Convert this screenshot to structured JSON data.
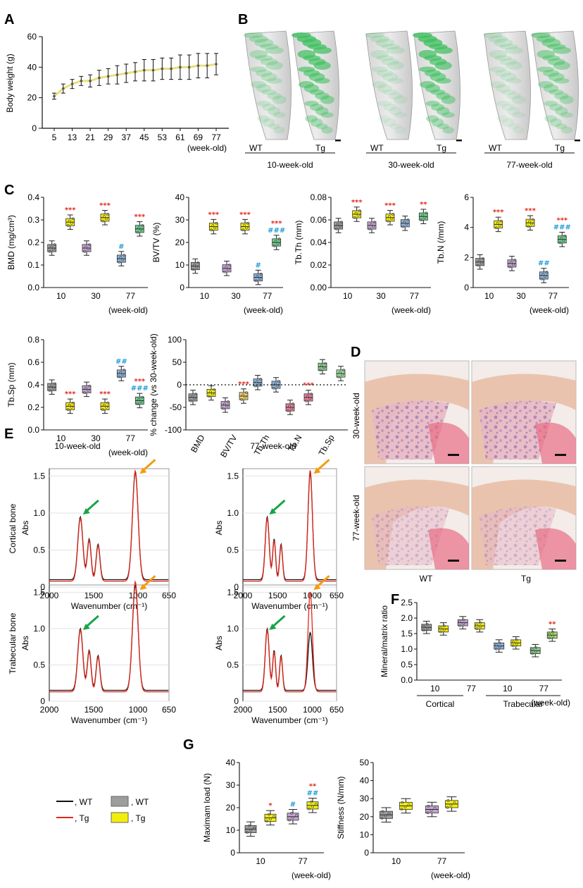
{
  "panels": {
    "A": "A",
    "B": "B",
    "C": "C",
    "D": "D",
    "E": "E",
    "F": "F",
    "G": "G"
  },
  "colors": {
    "wt_box": "#9d9d9d",
    "tg_box": "#f2ee0c",
    "wt_line": "#111111",
    "tg_line": "#e0281c",
    "blue": "#2f8fc8",
    "green_arrow": "#19a34a",
    "orange_arrow": "#f39c12",
    "red_sig": "#e0281c",
    "blue_sig": "#1e9ad6"
  },
  "panel_b": {
    "groups": [
      {
        "wt": "WT",
        "tg": "Tg",
        "age": "10-week-old"
      },
      {
        "wt": "WT",
        "tg": "Tg",
        "age": "30-week-old"
      },
      {
        "wt": "WT",
        "tg": "Tg",
        "age": "77-week-old"
      }
    ]
  },
  "panel_d": {
    "rows": [
      "30-week-old",
      "77-week-old"
    ],
    "cols": [
      "WT",
      "Tg"
    ]
  },
  "chart_data": [
    {
      "id": "A",
      "type": "line",
      "title": "",
      "ylabel": "Body weight (g)",
      "xlabel": "(week-old)",
      "ylim": [
        0,
        60
      ],
      "yticks": [
        0,
        20,
        40,
        60
      ],
      "x": [
        5,
        9,
        13,
        17,
        21,
        25,
        29,
        33,
        37,
        41,
        45,
        49,
        53,
        57,
        61,
        65,
        69,
        73,
        77
      ],
      "xtick_labels": [
        "5",
        "13",
        "21",
        "29",
        "37",
        "45",
        "53",
        "61",
        "69",
        "77"
      ],
      "series": [
        {
          "name": "Body weight",
          "values": [
            21,
            26,
            29,
            31,
            31,
            33,
            34,
            35,
            36,
            37,
            38,
            38,
            39,
            39,
            40,
            40,
            41,
            41,
            42
          ],
          "err": [
            2,
            3,
            3,
            3,
            4,
            5,
            5,
            6,
            6,
            6,
            7,
            7,
            7,
            7,
            8,
            8,
            8,
            8,
            7
          ]
        }
      ]
    },
    {
      "id": "C1",
      "type": "box",
      "ylabel": "BMD (mg/cm³)",
      "xlabel": "(week-old)",
      "ylim": [
        0,
        0.4
      ],
      "yticks": [
        "0.0",
        "0.1",
        "0.2",
        "0.3",
        "0.4"
      ],
      "categories": [
        "10",
        "30",
        "77"
      ],
      "series": [
        {
          "name": "WT",
          "values": [
            0.175,
            0.175,
            0.128
          ]
        },
        {
          "name": "Tg",
          "values": [
            0.29,
            0.31,
            0.26
          ]
        }
      ],
      "annotations": [
        {
          "group": "10",
          "series": "Tg",
          "text": "***",
          "color": "red"
        },
        {
          "group": "30",
          "series": "Tg",
          "text": "***",
          "color": "red"
        },
        {
          "group": "77",
          "series": "WT",
          "text": "#",
          "color": "blue"
        },
        {
          "group": "77",
          "series": "Tg",
          "text": "***",
          "color": "red"
        }
      ]
    },
    {
      "id": "C2",
      "type": "box",
      "ylabel": "BV/TV (%)",
      "xlabel": "(week-old)",
      "ylim": [
        0,
        40
      ],
      "yticks": [
        "0",
        "10",
        "20",
        "30",
        "40"
      ],
      "categories": [
        "10",
        "30",
        "77"
      ],
      "series": [
        {
          "name": "WT",
          "values": [
            9.5,
            8.5,
            4.5
          ]
        },
        {
          "name": "Tg",
          "values": [
            27,
            27,
            20
          ]
        }
      ],
      "annotations": [
        {
          "group": "10",
          "series": "Tg",
          "text": "***",
          "color": "red"
        },
        {
          "group": "30",
          "series": "Tg",
          "text": "***",
          "color": "red"
        },
        {
          "group": "77",
          "series": "WT",
          "text": "#",
          "color": "blue"
        },
        {
          "group": "77",
          "series": "Tg",
          "text": "###",
          "color": "blue"
        },
        {
          "group": "77",
          "series": "Tg",
          "text": "***",
          "color": "red"
        }
      ]
    },
    {
      "id": "C3",
      "type": "box",
      "ylabel": "Tb.Th (mm)",
      "xlabel": "(week-old)",
      "ylim": [
        0,
        0.08
      ],
      "yticks": [
        "0.00",
        "0.02",
        "0.04",
        "0.06",
        "0.08"
      ],
      "categories": [
        "10",
        "30",
        "77"
      ],
      "series": [
        {
          "name": "WT",
          "values": [
            0.055,
            0.055,
            0.057
          ]
        },
        {
          "name": "Tg",
          "values": [
            0.065,
            0.062,
            0.063
          ]
        }
      ],
      "annotations": [
        {
          "group": "10",
          "series": "Tg",
          "text": "***",
          "color": "red"
        },
        {
          "group": "30",
          "series": "Tg",
          "text": "***",
          "color": "red"
        },
        {
          "group": "77",
          "series": "Tg",
          "text": "**",
          "color": "red"
        }
      ]
    },
    {
      "id": "C4",
      "type": "box",
      "ylabel": "Tb.N (/mm)",
      "xlabel": "(week-old)",
      "ylim": [
        0,
        6
      ],
      "yticks": [
        "0",
        "2",
        "4",
        "6"
      ],
      "categories": [
        "10",
        "30",
        "77"
      ],
      "series": [
        {
          "name": "WT",
          "values": [
            1.7,
            1.6,
            0.8
          ]
        },
        {
          "name": "Tg",
          "values": [
            4.2,
            4.3,
            3.2
          ]
        }
      ],
      "annotations": [
        {
          "group": "10",
          "series": "Tg",
          "text": "***",
          "color": "red"
        },
        {
          "group": "30",
          "series": "Tg",
          "text": "***",
          "color": "red"
        },
        {
          "group": "77",
          "series": "WT",
          "text": "##",
          "color": "blue"
        },
        {
          "group": "77",
          "series": "Tg",
          "text": "###",
          "color": "blue"
        },
        {
          "group": "77",
          "series": "Tg",
          "text": "***",
          "color": "red"
        }
      ]
    },
    {
      "id": "C5",
      "type": "box",
      "ylabel": "Tb.Sp (mm)",
      "xlabel": "(week-old)",
      "ylim": [
        0,
        0.8
      ],
      "yticks": [
        "0.0",
        "0.2",
        "0.4",
        "0.6",
        "0.8"
      ],
      "categories": [
        "10",
        "30",
        "77"
      ],
      "series": [
        {
          "name": "WT",
          "values": [
            0.38,
            0.36,
            0.5
          ]
        },
        {
          "name": "Tg",
          "values": [
            0.21,
            0.21,
            0.26
          ]
        }
      ],
      "annotations": [
        {
          "group": "10",
          "series": "Tg",
          "text": "***",
          "color": "red"
        },
        {
          "group": "30",
          "series": "Tg",
          "text": "***",
          "color": "red"
        },
        {
          "group": "77",
          "series": "WT",
          "text": "##",
          "color": "blue"
        },
        {
          "group": "77",
          "series": "Tg",
          "text": "###",
          "color": "blue"
        },
        {
          "group": "77",
          "series": "Tg",
          "text": "***",
          "color": "red"
        }
      ]
    },
    {
      "id": "C6",
      "type": "box",
      "ylabel": "% change (vs 30-week-old)",
      "xlabel": "",
      "ylim": [
        -100,
        100
      ],
      "yticks": [
        "-100",
        "-50",
        "0",
        "50",
        "100"
      ],
      "categories": [
        "BMD",
        "BV/TV",
        "Tb.Th",
        "Tb.N",
        "Tb.Sp"
      ],
      "series": [
        {
          "name": "WT",
          "values": [
            -28,
            -45,
            5,
            -50,
            40
          ]
        },
        {
          "name": "Tg",
          "values": [
            -18,
            -25,
            0,
            -28,
            25
          ]
        }
      ],
      "annotations": [
        {
          "group": "BV/TV",
          "series": "Tg",
          "text": "***",
          "color": "red"
        },
        {
          "group": "Tb.N",
          "series": "Tg",
          "text": "***",
          "color": "red"
        }
      ]
    },
    {
      "id": "E",
      "type": "line",
      "ylabel": "Abs",
      "xlabel": "Wavenumber (cm⁻¹)",
      "xlim": [
        2000,
        650
      ],
      "xticks": [
        "2000",
        "1500",
        "1000",
        "650"
      ],
      "ylim": [
        0,
        1.5
      ],
      "yticks": [
        "0",
        "0.5",
        "1.0",
        "1.5"
      ],
      "subplots": [
        {
          "title": "10-week-old",
          "row": "Cortical bone"
        },
        {
          "title": "77-week-old",
          "row": "Cortical bone"
        },
        {
          "title": "",
          "row": "Trabecular bone"
        },
        {
          "title": "",
          "row": "Trabecular bone"
        }
      ],
      "series": [
        {
          "name": "WT"
        },
        {
          "name": "Tg"
        }
      ]
    },
    {
      "id": "F",
      "type": "box",
      "ylabel": "Mineral/matrix ratio",
      "xlabel": "(week-old)",
      "ylim": [
        0,
        2.5
      ],
      "yticks": [
        "0.0",
        "0.5",
        "1.0",
        "1.5",
        "2.0",
        "2.5"
      ],
      "categories": [
        "10",
        "77",
        "10",
        "77"
      ],
      "group_labels": [
        "Cortical",
        "Trabecular"
      ],
      "series": [
        {
          "name": "WT",
          "values": [
            1.7,
            1.85,
            1.1,
            0.95
          ]
        },
        {
          "name": "Tg",
          "values": [
            1.65,
            1.75,
            1.2,
            1.45
          ]
        }
      ],
      "annotations": [
        {
          "group": "77 Trabecular",
          "series": "Tg",
          "text": "**",
          "color": "red"
        }
      ]
    },
    {
      "id": "G1",
      "type": "box",
      "ylabel": "Maximam load (N)",
      "xlabel": "(week-old)",
      "ylim": [
        0,
        40
      ],
      "yticks": [
        "0",
        "10",
        "20",
        "30",
        "40"
      ],
      "categories": [
        "10",
        "77"
      ],
      "series": [
        {
          "name": "WT",
          "values": [
            10.5,
            16
          ]
        },
        {
          "name": "Tg",
          "values": [
            15.5,
            21
          ]
        }
      ],
      "annotations": [
        {
          "group": "10",
          "series": "Tg",
          "text": "*",
          "color": "red"
        },
        {
          "group": "77",
          "series": "WT",
          "text": "#",
          "color": "blue"
        },
        {
          "group": "77",
          "series": "Tg",
          "text": "##",
          "color": "blue"
        },
        {
          "group": "77",
          "series": "Tg",
          "text": "**",
          "color": "red"
        }
      ]
    },
    {
      "id": "G2",
      "type": "box",
      "ylabel": "Stiffness (N/mm)",
      "xlabel": "(week-old)",
      "ylim": [
        0,
        50
      ],
      "yticks": [
        "0",
        "10",
        "20",
        "30",
        "40",
        "50"
      ],
      "categories": [
        "10",
        "77"
      ],
      "series": [
        {
          "name": "WT",
          "values": [
            21,
            24
          ]
        },
        {
          "name": "Tg",
          "values": [
            26,
            27
          ]
        }
      ]
    }
  ],
  "legend": {
    "lines": [
      ", WT",
      ", Tg"
    ],
    "boxes": [
      ", WT",
      ", Tg"
    ]
  }
}
